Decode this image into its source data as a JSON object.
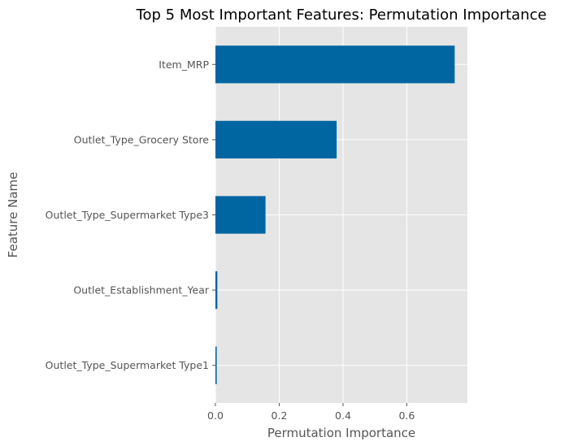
{
  "chart_data": {
    "type": "bar",
    "orientation": "horizontal",
    "title": "Top 5 Most Important Features: Permutation Importance",
    "xlabel": "Permutation Importance",
    "ylabel": "Feature Name",
    "categories": [
      "Item_MRP",
      "Outlet_Type_Grocery Store",
      "Outlet_Type_Supermarket Type3",
      "Outlet_Establishment_Year",
      "Outlet_Type_Supermarket Type1"
    ],
    "values": [
      0.75,
      0.38,
      0.157,
      0.006,
      0.004
    ],
    "xlim": [
      0,
      0.79
    ],
    "xticks": [
      "0.0",
      "0.2",
      "0.4",
      "0.6"
    ],
    "grid": true,
    "bar_color": "#0066a2",
    "background_color": "#e5e5e5"
  }
}
